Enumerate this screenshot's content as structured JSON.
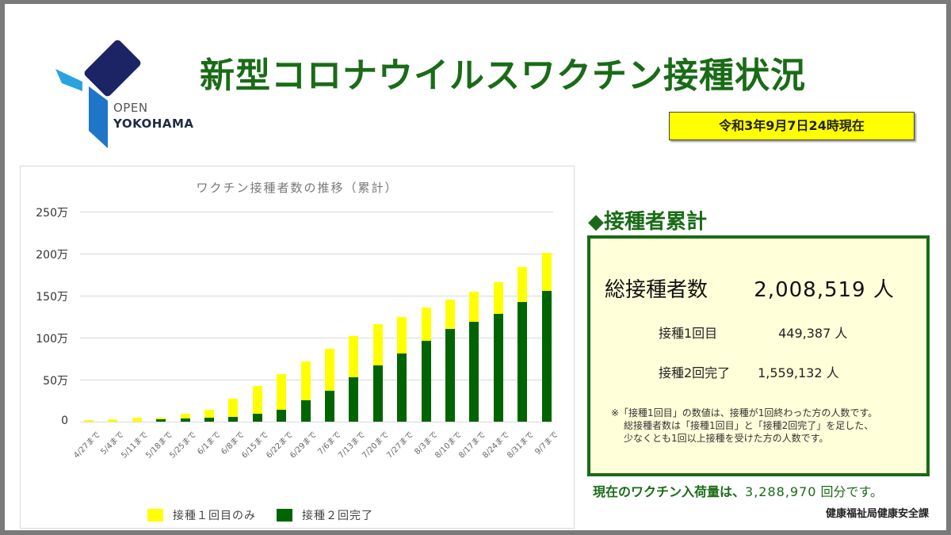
{
  "header": {
    "logo_line1": "OPEN",
    "logo_line2": "YOKOHAMA",
    "title": "新型コロナウイルスワクチン接種状況",
    "as_of": "令和3年9月7日24時現在"
  },
  "colors": {
    "title_green": "#1a6b17",
    "first_dose_only": "#ffff00",
    "second_dose_complete": "#006400",
    "summary_bg": "#ffffd9",
    "badge_yellow": "#ffff00"
  },
  "chart_data": {
    "type": "bar",
    "stacked": true,
    "title": "ワクチン接種者数の推移（累計）",
    "xlabel": "",
    "ylabel": "",
    "ylim": [
      0,
      2500000
    ],
    "y_ticks": [
      "0",
      "50万",
      "100万",
      "150万",
      "200万",
      "250万"
    ],
    "grid": true,
    "legend_position": "bottom",
    "categories": [
      "4/27まで",
      "5/4まで",
      "5/11まで",
      "5/18まで",
      "5/25まで",
      "6/1まで",
      "6/8まで",
      "6/15まで",
      "6/22まで",
      "6/29まで",
      "7/6まで",
      "7/13まで",
      "7/20まで",
      "7/27まで",
      "8/3まで",
      "8/10まで",
      "8/17まで",
      "8/24まで",
      "8/31まで",
      "9/7まで"
    ],
    "series": [
      {
        "name": "接種２回完了",
        "color": "#006400",
        "values": [
          0,
          0,
          0,
          25000,
          35000,
          45000,
          55000,
          90000,
          145000,
          255000,
          365000,
          525000,
          670000,
          810000,
          965000,
          1100000,
          1190000,
          1285000,
          1420000,
          1559132
        ]
      },
      {
        "name": "接種１回目のみ",
        "color": "#ffff00",
        "values": [
          15000,
          30000,
          45000,
          25000,
          55000,
          100000,
          215000,
          330000,
          425000,
          465000,
          505000,
          495000,
          490000,
          440000,
          395000,
          350000,
          360000,
          375000,
          420000,
          449387
        ]
      }
    ],
    "totals": [
      15000,
      30000,
      45000,
      50000,
      90000,
      145000,
      270000,
      420000,
      570000,
      720000,
      870000,
      1020000,
      1160000,
      1250000,
      1360000,
      1450000,
      1550000,
      1660000,
      1840000,
      2008519
    ]
  },
  "chart": {
    "title": "ワクチン接種者数の推移（累計）",
    "y_ticks": [
      "0",
      "50万",
      "100万",
      "150万",
      "200万",
      "250万"
    ],
    "legend": [
      "接種１回目のみ",
      "接種２回完了"
    ]
  },
  "summary": {
    "heading": "◆接種者累計",
    "total_label": "総接種者数",
    "total_value": "2,008,519 人",
    "first_label": "接種1回目",
    "first_value": "449,387 人",
    "second_label": "接種2回完了",
    "second_value": "1,559,132 人",
    "note": [
      "※「接種1回目」の数値は、接種が1回終わった方の人数です。",
      "総接種者数は「接種1回目」と「接種2回完了」を足した、",
      "少なくとも1回以上接種を受けた方の人数です。"
    ]
  },
  "footer": {
    "stock_prefix": "現在のワクチン入荷量は、",
    "stock_value": "3,288,970",
    "stock_suffix": " 回分です。",
    "department": "健康福祉局健康安全課"
  }
}
